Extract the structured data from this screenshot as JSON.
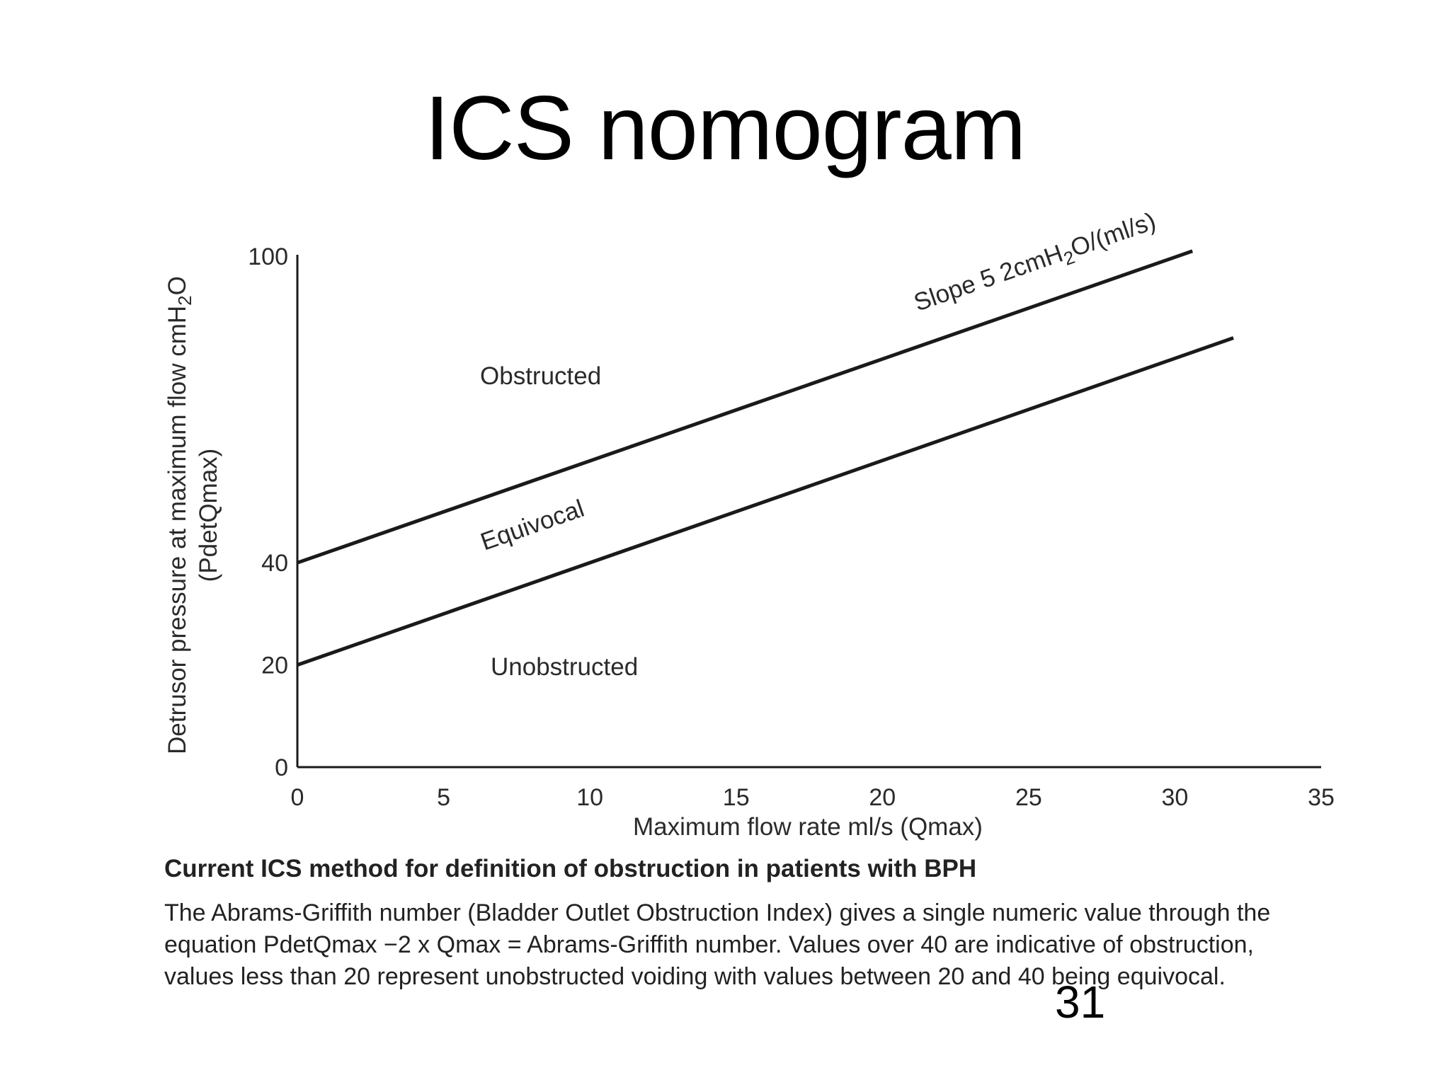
{
  "slide": {
    "title": "ICS nomogram",
    "slide_number": "31"
  },
  "chart_data": {
    "type": "line",
    "xlabel": "Maximum flow rate ml/s (Qmax)",
    "ylabel_line1": "Detrusor pressure at maximum flow cmH",
    "ylabel_line1_sub": "2",
    "ylabel_line1_end": "O",
    "ylabel_line2": "(PdetQmax)",
    "xlim": [
      0,
      35
    ],
    "ylim": [
      0,
      100
    ],
    "x_ticks": [
      0,
      5,
      10,
      15,
      20,
      25,
      30,
      35
    ],
    "y_ticks": [
      0,
      20,
      40,
      100
    ],
    "grid": false,
    "series": [
      {
        "x": [
          0,
          30.6
        ],
        "y": [
          40,
          101
        ]
      },
      {
        "x": [
          0,
          32
        ],
        "y": [
          20,
          84
        ]
      }
    ],
    "annotations": {
      "slope_prefix": "Slope 5 2cmH",
      "slope_sub": "2",
      "slope_suffix": "O/(ml/s)",
      "obstructed": "Obstructed",
      "equivocal": "Equivocal",
      "unobstructed": "Unobstructed"
    },
    "colors": {
      "line": "#1a1a1a",
      "text": "#2a2a2a"
    }
  },
  "caption": {
    "title": "Current ICS method for definition of obstruction in patients with BPH",
    "body": "The Abrams-Griffith number (Bladder Outlet Obstruction Index) gives a single numeric value through the equation PdetQmax −2 x Qmax = Abrams-Griffith number. Values over 40 are indicative of obstruction, values less than 20 represent unobstructed voiding with values between 20 and 40 being equivocal."
  }
}
